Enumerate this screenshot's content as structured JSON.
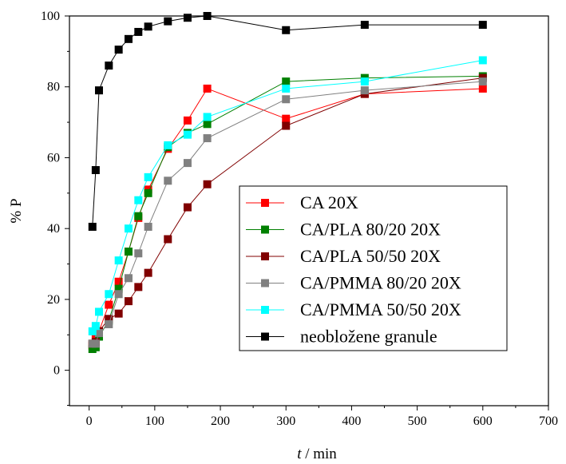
{
  "chart_data": {
    "type": "line",
    "xlabel_italic": "t",
    "xlabel_rest": " / min",
    "ylabel": "% P",
    "xlim": [
      -30,
      700
    ],
    "ylim": [
      -10,
      100
    ],
    "xticks": [
      0,
      100,
      200,
      300,
      400,
      500,
      600,
      700
    ],
    "yticks": [
      0,
      20,
      40,
      60,
      80,
      100
    ],
    "grid": false,
    "legend_position": "center-right",
    "series": [
      {
        "name": "CA 20X",
        "color": "#ff0000",
        "points": [
          [
            5,
            7
          ],
          [
            10,
            9
          ],
          [
            15,
            11
          ],
          [
            30,
            18.5
          ],
          [
            45,
            25
          ],
          [
            60,
            33.5
          ],
          [
            75,
            43
          ],
          [
            90,
            51
          ],
          [
            120,
            62.5
          ],
          [
            150,
            70.5
          ],
          [
            180,
            79.5
          ],
          [
            300,
            71
          ],
          [
            420,
            78
          ],
          [
            600,
            79.5
          ]
        ]
      },
      {
        "name": "CA/PLA 80/20 20X",
        "color": "#008000",
        "points": [
          [
            5,
            6
          ],
          [
            10,
            6.5
          ],
          [
            15,
            9.5
          ],
          [
            30,
            14
          ],
          [
            45,
            23
          ],
          [
            60,
            33.5
          ],
          [
            75,
            43.5
          ],
          [
            90,
            50
          ],
          [
            120,
            63
          ],
          [
            150,
            67
          ],
          [
            180,
            69.5
          ],
          [
            300,
            81.5
          ],
          [
            420,
            82.5
          ],
          [
            600,
            83
          ]
        ]
      },
      {
        "name": "CA/PLA 50/50 20X",
        "color": "#800000",
        "points": [
          [
            5,
            7.5
          ],
          [
            10,
            8
          ],
          [
            15,
            11
          ],
          [
            30,
            14.5
          ],
          [
            45,
            16
          ],
          [
            60,
            19.5
          ],
          [
            75,
            23.5
          ],
          [
            90,
            27.5
          ],
          [
            120,
            37
          ],
          [
            150,
            46
          ],
          [
            180,
            52.5
          ],
          [
            300,
            69
          ],
          [
            420,
            78
          ],
          [
            600,
            82.5
          ]
        ]
      },
      {
        "name": "CA/PMMA 80/20 20X",
        "color": "#808080",
        "points": [
          [
            5,
            7.5
          ],
          [
            10,
            7.5
          ],
          [
            15,
            10.5
          ],
          [
            30,
            13
          ],
          [
            45,
            21.5
          ],
          [
            60,
            26
          ],
          [
            75,
            33
          ],
          [
            90,
            40.5
          ],
          [
            120,
            53.5
          ],
          [
            150,
            58.5
          ],
          [
            180,
            65.5
          ],
          [
            300,
            76.5
          ],
          [
            420,
            79
          ],
          [
            600,
            81.5
          ]
        ]
      },
      {
        "name": "CA/PMMA 50/50 20X",
        "color": "#00ffff",
        "points": [
          [
            5,
            11
          ],
          [
            10,
            12.5
          ],
          [
            15,
            16.5
          ],
          [
            30,
            21.5
          ],
          [
            45,
            31
          ],
          [
            60,
            40
          ],
          [
            75,
            48
          ],
          [
            90,
            54.5
          ],
          [
            120,
            63.5
          ],
          [
            150,
            66.5
          ],
          [
            180,
            71.5
          ],
          [
            300,
            79.5
          ],
          [
            420,
            81.5
          ],
          [
            600,
            87.5
          ]
        ]
      },
      {
        "name": "neobložene granule",
        "color": "#000000",
        "points": [
          [
            5,
            40.5
          ],
          [
            10,
            56.5
          ],
          [
            15,
            79
          ],
          [
            30,
            86
          ],
          [
            45,
            90.5
          ],
          [
            60,
            93.5
          ],
          [
            75,
            95.5
          ],
          [
            90,
            97
          ],
          [
            120,
            98.5
          ],
          [
            150,
            99.5
          ],
          [
            180,
            100
          ],
          [
            300,
            96
          ],
          [
            420,
            97.5
          ],
          [
            600,
            97.5
          ]
        ]
      }
    ]
  }
}
